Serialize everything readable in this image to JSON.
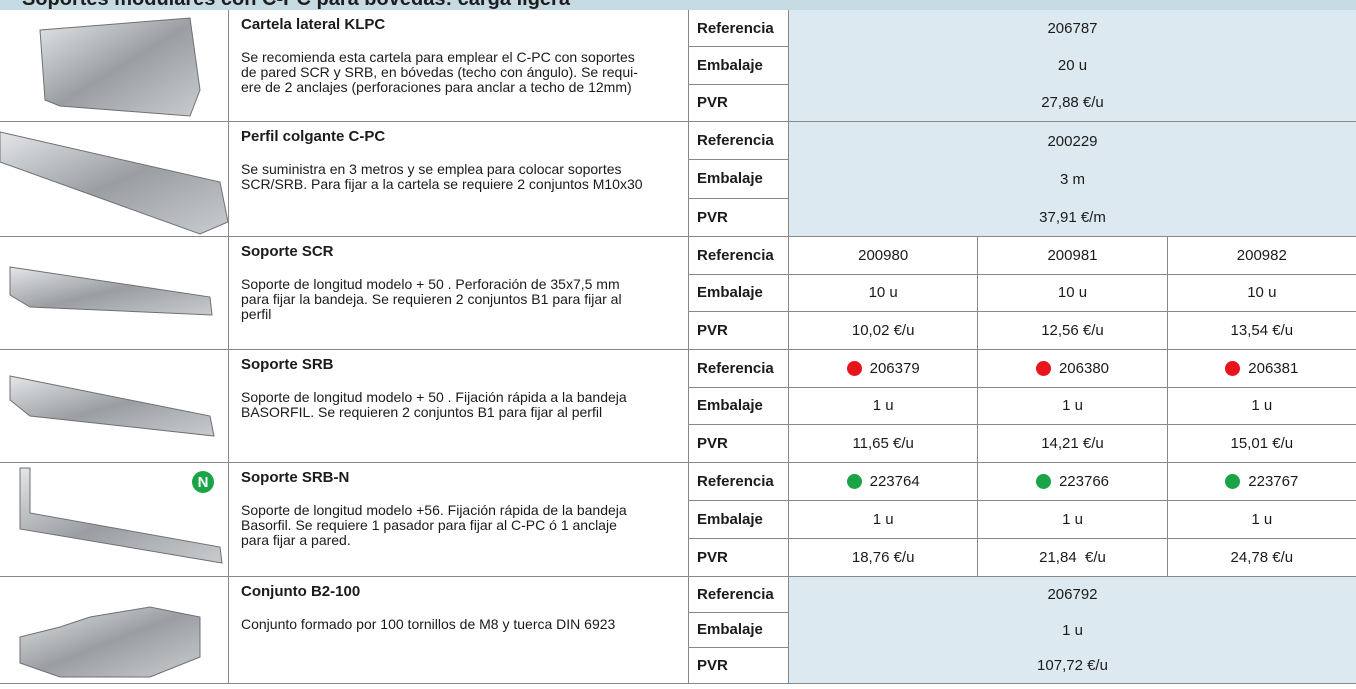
{
  "header": {
    "title": "Soportes modulares con C-PC para bóvedas: carga ligera"
  },
  "rows": [
    {
      "name": "Cartela lateral KLPC",
      "description": [
        "Se recomienda esta cartela para emplear el C-PC con soportes",
        "de pared SCR y SRB, en bóvedas (techo con ángulo). Se requi-",
        "ere de 2 anclajes (perforaciones para anclar a techo de  12mm)"
      ],
      "labels": [
        "Referencia",
        "Embalaje",
        "PVR"
      ],
      "values": [
        [
          "206787"
        ],
        [
          "20 u"
        ],
        [
          "27,88 €/u"
        ]
      ]
    },
    {
      "name": "Perfil colgante C-PC",
      "description": [
        "Se suministra en 3 metros y se emplea para colocar soportes",
        "SCR/SRB. Para fijar a la cartela se requiere 2 conjuntos M10x30"
      ],
      "labels": [
        "Referencia",
        "Embalaje",
        "PVR"
      ],
      "values": [
        [
          "200229"
        ],
        [
          "3 m"
        ],
        [
          "37,91 €/m"
        ]
      ]
    },
    {
      "name": "Soporte SCR",
      "description": [
        "Soporte de longitud modelo + 50 . Perforación de 35x7,5 mm",
        "para fijar la bandeja. Se requieren 2 conjuntos B1 para fijar al",
        "perfil"
      ],
      "labels": [
        "Referencia",
        "Embalaje",
        "PVR"
      ],
      "values": [
        [
          "200980",
          "200981",
          "200982"
        ],
        [
          "10 u",
          "10 u",
          "10 u"
        ],
        [
          "10,02 €/u",
          "12,56 €/u",
          "13,54 €/u"
        ]
      ]
    },
    {
      "name": "Soporte SRB",
      "description": [
        "Soporte de longitud modelo + 50 . Fijación rápida a la bandeja",
        "BASORFIL. Se requieren 2 conjuntos B1 para fijar al perfil"
      ],
      "labels": [
        "Referencia",
        "Embalaje",
        "PVR"
      ],
      "marker": "#e8141b",
      "values": [
        [
          "206379",
          "206380",
          "206381"
        ],
        [
          "1 u",
          "1 u",
          "1 u"
        ],
        [
          "11,65 €/u",
          "14,21 €/u",
          "15,01 €/u"
        ]
      ]
    },
    {
      "name": "Soporte SRB-N",
      "badge": "N",
      "description": [
        "Soporte de longitud modelo +56. Fijación rápida de la bandeja",
        "Basorfil. Se requiere 1 pasador para fijar al C-PC ó 1 anclaje",
        "para fijar a pared."
      ],
      "labels": [
        "Referencia",
        "Embalaje",
        "PVR"
      ],
      "marker": "#1aa447",
      "values": [
        [
          "223764",
          "223766",
          "223767"
        ],
        [
          "1 u",
          "1 u",
          "1 u"
        ],
        [
          "18,76 €/u",
          "21,84  €/u",
          "24,78 €/u"
        ]
      ]
    },
    {
      "name": "Conjunto B2-100",
      "description": [
        "Conjunto formado por 100 tornillos de M8 y tuerca DIN 6923"
      ],
      "labels": [
        "Referencia",
        "Embalaje",
        "PVR"
      ],
      "values": [
        [
          "206792"
        ],
        [
          "1 u"
        ],
        [
          "107,72 €/u"
        ]
      ]
    }
  ]
}
